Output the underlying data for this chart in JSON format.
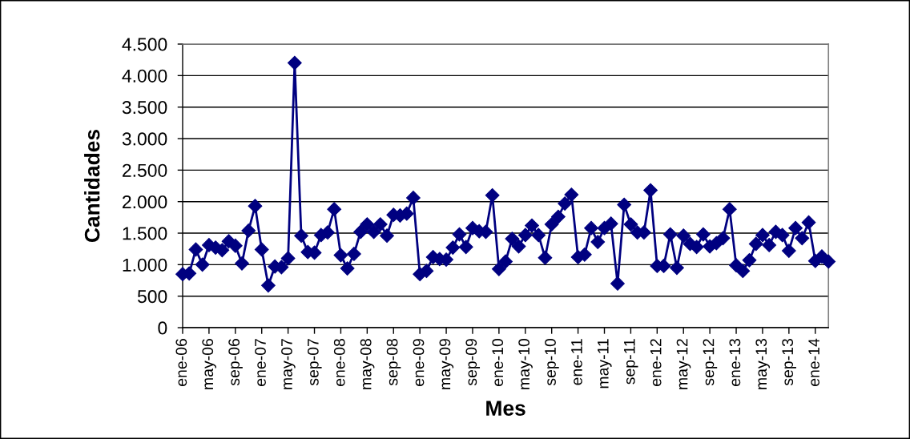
{
  "chart_data": {
    "type": "line",
    "xlabel": "Mes",
    "ylabel": "Cantidades",
    "categories": [
      "ene-06",
      null,
      null,
      null,
      "may-06",
      null,
      null,
      null,
      "sep-06",
      null,
      null,
      null,
      "ene-07",
      null,
      null,
      null,
      "may-07",
      null,
      null,
      null,
      "sep-07",
      null,
      null,
      null,
      "ene-08",
      null,
      null,
      null,
      "may-08",
      null,
      null,
      null,
      "sep-08",
      null,
      null,
      null,
      "ene-09",
      null,
      null,
      null,
      "may-09",
      null,
      null,
      null,
      "sep-09",
      null,
      null,
      null,
      "ene-10",
      null,
      null,
      null,
      "may-10",
      null,
      null,
      null,
      "sep-10",
      null,
      null,
      null,
      "ene-11",
      null,
      null,
      null,
      "may-11",
      null,
      null,
      null,
      "sep-11",
      null,
      null,
      null,
      "ene-12",
      null,
      null,
      null,
      "may-12",
      null,
      null,
      null,
      "sep-12",
      null,
      null,
      null,
      "ene-13",
      null,
      null,
      null,
      "may-13",
      null,
      null,
      null,
      "sep-13",
      null,
      null,
      null,
      "ene-14",
      null,
      null
    ],
    "series": [
      {
        "color": "#000080",
        "values": [
          850,
          860,
          1240,
          1000,
          1310,
          1270,
          1230,
          1370,
          1300,
          1020,
          1540,
          1930,
          1240,
          670,
          970,
          960,
          1100,
          4200,
          1460,
          1200,
          1190,
          1470,
          1510,
          1880,
          1150,
          940,
          1170,
          1520,
          1640,
          1520,
          1640,
          1460,
          1790,
          1780,
          1810,
          2060,
          850,
          900,
          1120,
          1090,
          1080,
          1270,
          1480,
          1280,
          1580,
          1530,
          1520,
          2100,
          930,
          1050,
          1410,
          1290,
          1470,
          1620,
          1470,
          1110,
          1640,
          1760,
          1970,
          2110,
          1120,
          1160,
          1580,
          1360,
          1580,
          1650,
          700,
          1950,
          1640,
          1510,
          1510,
          2180,
          980,
          980,
          1480,
          950,
          1460,
          1330,
          1280,
          1480,
          1290,
          1340,
          1420,
          1880,
          990,
          900,
          1070,
          1330,
          1470,
          1310,
          1520,
          1470,
          1220,
          1580,
          1420,
          1670,
          1060,
          1130,
          1050
        ]
      }
    ],
    "ylim": [
      0,
      4500
    ],
    "yticks": [
      0,
      500,
      {
        "value": 1000,
        "label": "1.000"
      },
      {
        "value": 1500,
        "label": "1.500"
      },
      {
        "value": 2000,
        "label": "2.000"
      },
      {
        "value": 2500,
        "label": "2.500"
      },
      {
        "value": 3000,
        "label": "3.000"
      },
      {
        "value": 3500,
        "label": "3.500"
      },
      {
        "value": 4000,
        "label": "4.000"
      },
      {
        "value": 4500,
        "label": "4.500"
      }
    ],
    "grid": "y",
    "marker": "diamond",
    "line_style": "solid"
  }
}
